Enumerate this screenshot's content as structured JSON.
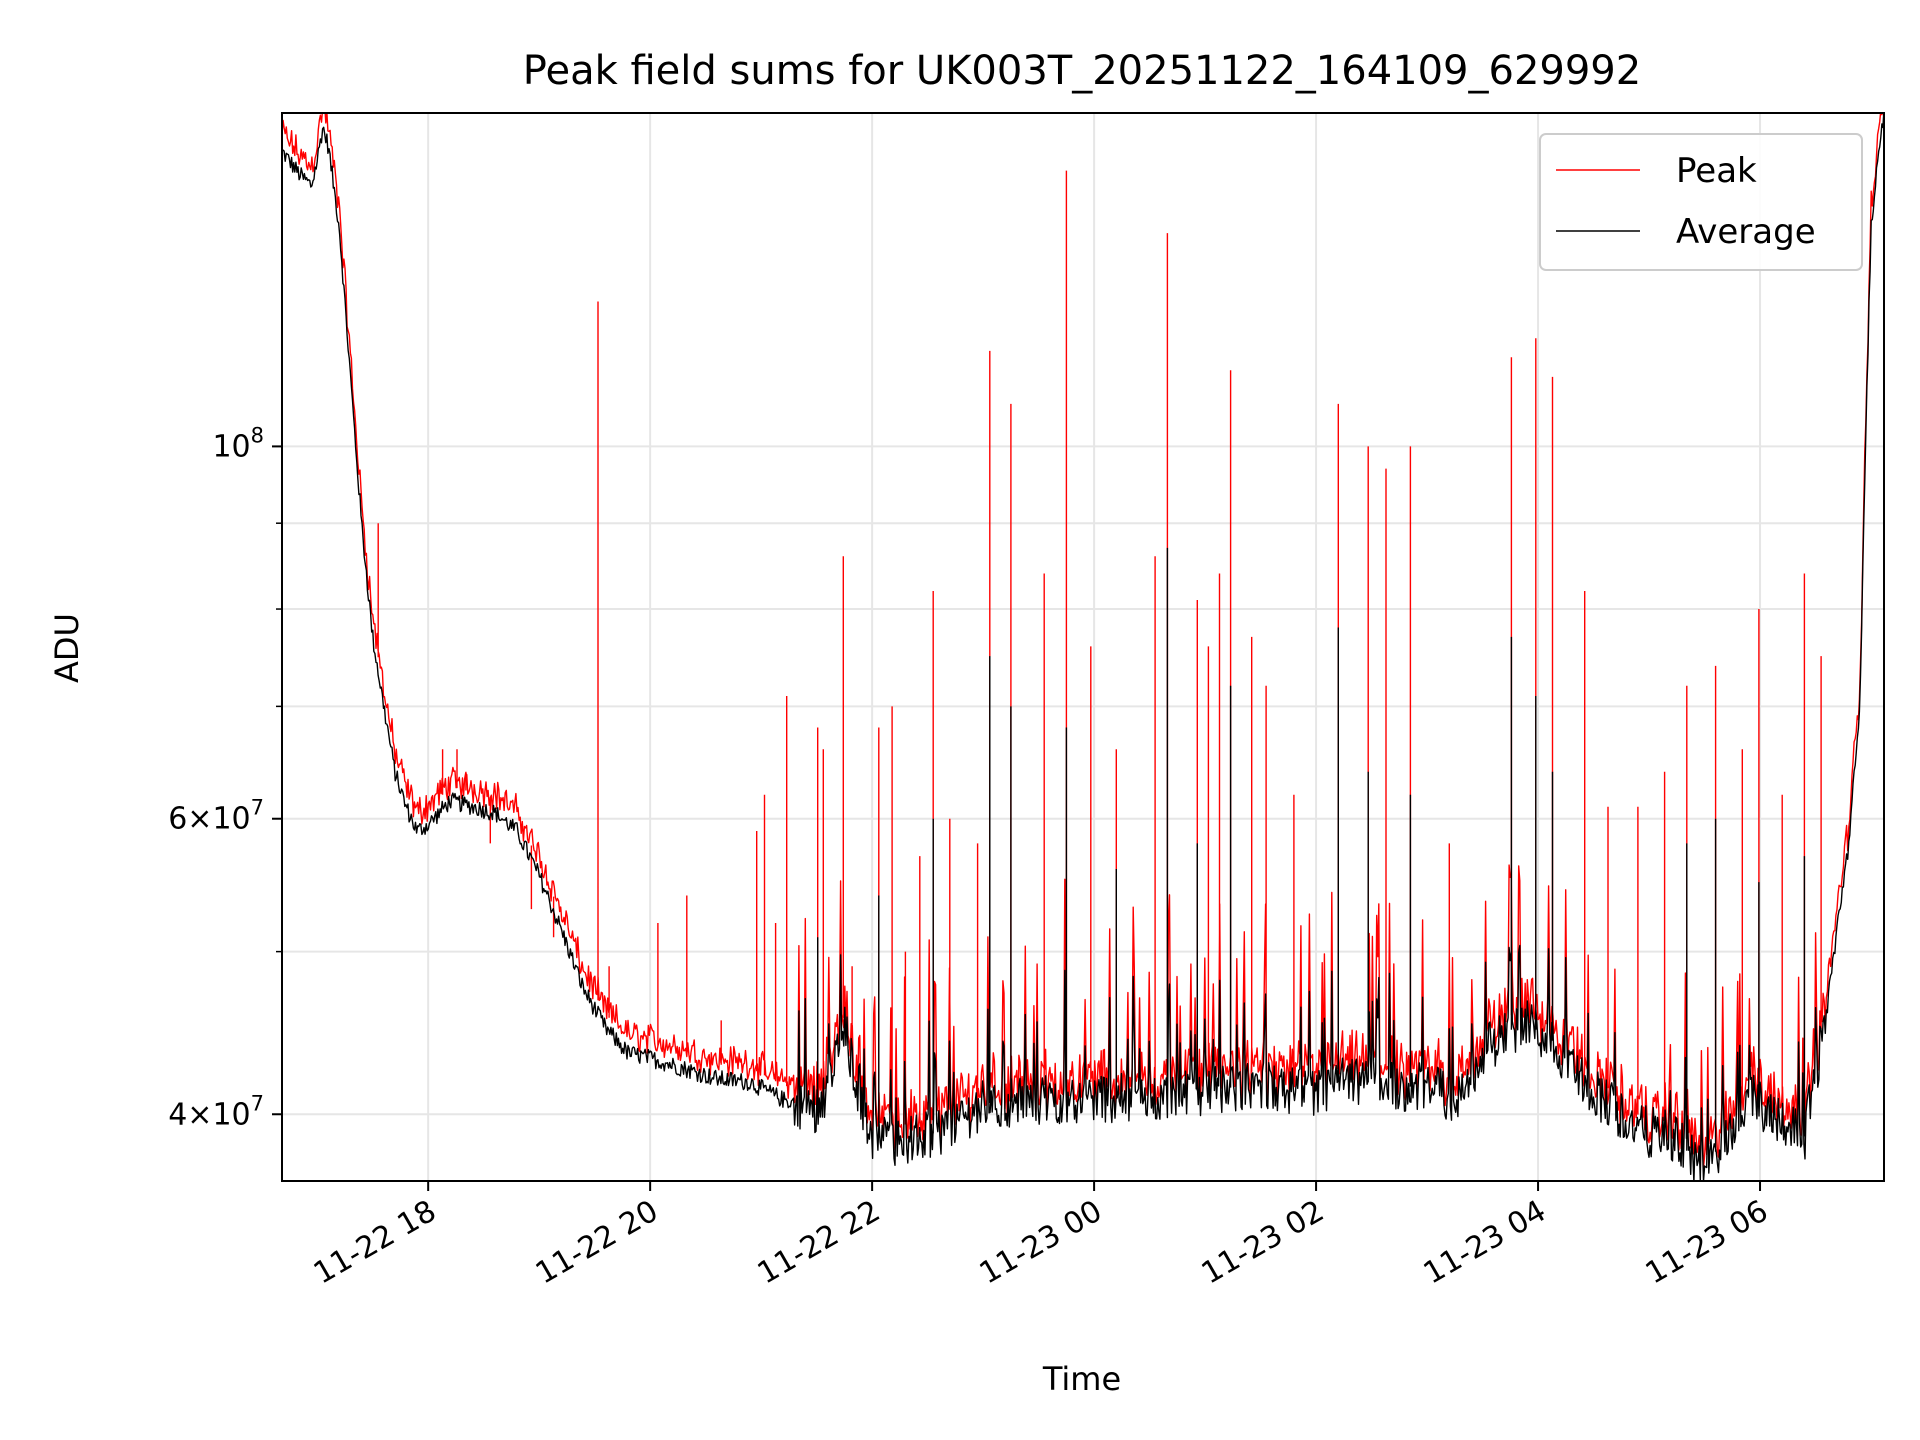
{
  "chart_data": {
    "type": "line",
    "title": "Peak field sums for UK003T_20251122_164109_629992",
    "xlabel": "Time",
    "ylabel": "ADU",
    "yscale": "log",
    "ylim": [
      36500000,
      158000000
    ],
    "xlim_hours": [
      16.683,
      31.117
    ],
    "grid": true,
    "legend_position": "upper right",
    "x_ticks": [
      {
        "hours": 18,
        "label": "11-22 18"
      },
      {
        "hours": 20,
        "label": "11-22 20"
      },
      {
        "hours": 22,
        "label": "11-22 22"
      },
      {
        "hours": 24,
        "label": "11-23 00"
      },
      {
        "hours": 26,
        "label": "11-23 02"
      },
      {
        "hours": 28,
        "label": "11-23 04"
      },
      {
        "hours": 30,
        "label": "11-23 06"
      }
    ],
    "y_major_ticks": [
      {
        "value": 40000000,
        "base": "4",
        "exp": "7"
      },
      {
        "value": 60000000,
        "base": "6",
        "exp": "7"
      },
      {
        "value": 100000000,
        "base": "",
        "exp": "8"
      }
    ],
    "y_minor_ticks": [
      50000000,
      70000000,
      80000000,
      90000000
    ],
    "series": [
      {
        "name": "Peak",
        "color": "#ff0000"
      },
      {
        "name": "Average",
        "color": "#000000"
      }
    ],
    "baseline_average": [
      [
        16.68,
        150000000
      ],
      [
        16.85,
        145000000
      ],
      [
        16.95,
        143000000
      ],
      [
        17.0,
        148000000
      ],
      [
        17.05,
        155000000
      ],
      [
        17.1,
        151000000
      ],
      [
        17.2,
        135000000
      ],
      [
        17.3,
        110000000
      ],
      [
        17.4,
        90000000
      ],
      [
        17.5,
        77000000
      ],
      [
        17.6,
        70000000
      ],
      [
        17.7,
        64000000
      ],
      [
        17.8,
        61000000
      ],
      [
        17.9,
        59000000
      ],
      [
        18.0,
        59500000
      ],
      [
        18.2,
        61500000
      ],
      [
        18.4,
        61000000
      ],
      [
        18.6,
        60500000
      ],
      [
        18.8,
        59000000
      ],
      [
        19.0,
        55500000
      ],
      [
        19.2,
        51500000
      ],
      [
        19.4,
        47500000
      ],
      [
        19.6,
        45000000
      ],
      [
        19.8,
        43500000
      ],
      [
        20.0,
        43200000
      ],
      [
        20.3,
        42600000
      ],
      [
        20.6,
        42000000
      ],
      [
        20.9,
        41800000
      ],
      [
        21.2,
        40800000
      ],
      [
        21.5,
        40400000
      ],
      [
        21.6,
        41500000
      ],
      [
        21.75,
        45000000
      ],
      [
        21.85,
        42000000
      ],
      [
        22.0,
        38800000
      ],
      [
        22.2,
        38600000
      ],
      [
        22.5,
        38800000
      ],
      [
        22.8,
        39800000
      ],
      [
        23.0,
        40600000
      ],
      [
        23.5,
        40800000
      ],
      [
        24.0,
        41000000
      ],
      [
        24.5,
        40800000
      ],
      [
        25.0,
        41400000
      ],
      [
        25.5,
        41600000
      ],
      [
        26.0,
        41000000
      ],
      [
        26.2,
        41800000
      ],
      [
        26.6,
        41800000
      ],
      [
        27.0,
        41400000
      ],
      [
        27.3,
        41000000
      ],
      [
        27.5,
        43500000
      ],
      [
        27.7,
        44800000
      ],
      [
        27.9,
        45200000
      ],
      [
        28.1,
        44500000
      ],
      [
        28.4,
        42000000
      ],
      [
        28.6,
        40800000
      ],
      [
        28.9,
        39200000
      ],
      [
        29.2,
        38800000
      ],
      [
        29.5,
        37200000
      ],
      [
        29.7,
        38800000
      ],
      [
        29.9,
        41000000
      ],
      [
        30.1,
        40200000
      ],
      [
        30.4,
        38800000
      ],
      [
        30.6,
        46000000
      ],
      [
        30.7,
        52000000
      ],
      [
        30.8,
        58000000
      ],
      [
        30.9,
        70000000
      ],
      [
        30.95,
        100000000
      ],
      [
        31.0,
        135000000
      ],
      [
        31.05,
        145000000
      ],
      [
        31.117,
        158000000
      ]
    ],
    "peak_spikes": [
      [
        17.55,
        90000000
      ],
      [
        18.13,
        66000000
      ],
      [
        18.26,
        66000000
      ],
      [
        18.34,
        64000000
      ],
      [
        18.56,
        58000000
      ],
      [
        18.93,
        53000000
      ],
      [
        19.13,
        51000000
      ],
      [
        19.23,
        52000000
      ],
      [
        19.53,
        122000000
      ],
      [
        19.63,
        49000000
      ],
      [
        20.07,
        52000000
      ],
      [
        20.33,
        54000000
      ],
      [
        20.64,
        45500000
      ],
      [
        20.96,
        59000000
      ],
      [
        21.03,
        62000000
      ],
      [
        21.13,
        52000000
      ],
      [
        21.23,
        71000000
      ],
      [
        21.51,
        68000000
      ],
      [
        21.56,
        66000000
      ],
      [
        21.74,
        86000000
      ],
      [
        21.82,
        49000000
      ],
      [
        22.06,
        68000000
      ],
      [
        22.18,
        70000000
      ],
      [
        22.3,
        50000000
      ],
      [
        22.43,
        57000000
      ],
      [
        22.55,
        82000000
      ],
      [
        22.7,
        60000000
      ],
      [
        22.95,
        58000000
      ],
      [
        23.06,
        114000000
      ],
      [
        23.25,
        106000000
      ],
      [
        23.55,
        84000000
      ],
      [
        23.75,
        146000000
      ],
      [
        23.97,
        76000000
      ],
      [
        24.2,
        66000000
      ],
      [
        24.55,
        86000000
      ],
      [
        24.66,
        134000000
      ],
      [
        24.93,
        81000000
      ],
      [
        25.03,
        76000000
      ],
      [
        25.13,
        84000000
      ],
      [
        25.23,
        111000000
      ],
      [
        25.42,
        77000000
      ],
      [
        25.55,
        72000000
      ],
      [
        25.8,
        62000000
      ],
      [
        26.2,
        106000000
      ],
      [
        26.47,
        100000000
      ],
      [
        26.63,
        97000000
      ],
      [
        26.85,
        100000000
      ],
      [
        27.2,
        58000000
      ],
      [
        27.76,
        113000000
      ],
      [
        27.98,
        116000000
      ],
      [
        28.13,
        110000000
      ],
      [
        28.42,
        82000000
      ],
      [
        28.63,
        61000000
      ],
      [
        28.9,
        61000000
      ],
      [
        29.14,
        64000000
      ],
      [
        29.34,
        72000000
      ],
      [
        29.6,
        74000000
      ],
      [
        29.84,
        66000000
      ],
      [
        29.99,
        80000000
      ],
      [
        30.2,
        62000000
      ],
      [
        30.4,
        84000000
      ],
      [
        30.55,
        75000000
      ]
    ],
    "avg_spikes": [
      [
        21.51,
        51000000
      ],
      [
        22.06,
        54000000
      ],
      [
        22.55,
        60000000
      ],
      [
        23.06,
        75000000
      ],
      [
        23.25,
        70000000
      ],
      [
        23.75,
        68000000
      ],
      [
        24.2,
        56000000
      ],
      [
        24.66,
        87000000
      ],
      [
        24.93,
        58000000
      ],
      [
        25.23,
        72000000
      ],
      [
        26.2,
        78000000
      ],
      [
        26.47,
        64000000
      ],
      [
        26.85,
        62000000
      ],
      [
        27.76,
        77000000
      ],
      [
        27.98,
        71000000
      ],
      [
        28.13,
        64000000
      ],
      [
        29.34,
        58000000
      ],
      [
        29.6,
        60000000
      ],
      [
        29.99,
        55000000
      ],
      [
        30.4,
        57000000
      ]
    ]
  }
}
